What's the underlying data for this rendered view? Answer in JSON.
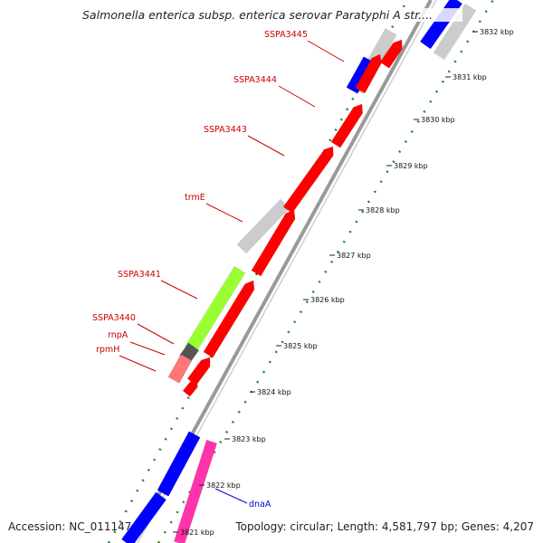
{
  "title": "Salmonella enterica subsp. enterica serovar Paratyphi A str....",
  "footer": {
    "accession": "Accession: NC_011147",
    "topology": "Topology: circular; Length: 4,581,797 bp; Genes: 4,207"
  },
  "genes": [
    {
      "name": "SSPA3445",
      "color": "#cc0000"
    },
    {
      "name": "SSPA3444",
      "color": "#cc0000"
    },
    {
      "name": "SSPA3443",
      "color": "#cc0000"
    },
    {
      "name": "trmE",
      "color": "#cc0000"
    },
    {
      "name": "SSPA3441",
      "color": "#cc0000"
    },
    {
      "name": "SSPA3440",
      "color": "#cc0000"
    },
    {
      "name": "rnpA",
      "color": "#cc0000"
    },
    {
      "name": "rpmH",
      "color": "#cc0000"
    },
    {
      "name": "dnaA",
      "color": "#0000cc"
    }
  ],
  "ticks": [
    "3832 kbp",
    "3831 kbp",
    "3830 kbp",
    "3829 kbp",
    "3828 kbp",
    "3827 kbp",
    "3826 kbp",
    "3825 kbp",
    "3824 kbp",
    "3823 kbp",
    "3822 kbp",
    "3821 kbp"
  ],
  "colors": {
    "red": "#ff0000",
    "blue": "#0000ff",
    "grey": "#cccccc",
    "green": "#99ff33",
    "pink": "#ff33aa",
    "dark": "#555555",
    "salmon": "#ff7777",
    "backbone": "#999999",
    "dots": "#228822"
  }
}
